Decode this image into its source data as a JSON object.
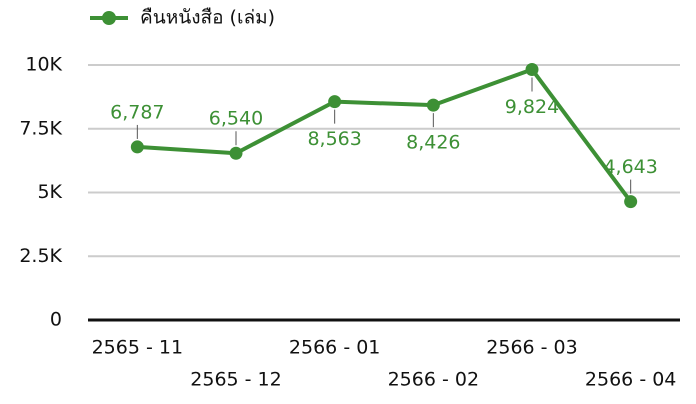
{
  "chart_data": {
    "type": "line",
    "series": [
      {
        "name": "คืนหนังสือ (เล่ม)",
        "color": "#3d9035",
        "values": [
          6787,
          6540,
          8563,
          8426,
          9824,
          4643
        ],
        "value_labels": [
          "6,787",
          "6,540",
          "8,563",
          "8,426",
          "9,824",
          "4,643"
        ]
      }
    ],
    "categories": [
      "2565 - 11",
      "2565 - 12",
      "2566 - 01",
      "2566 - 02",
      "2566 - 03",
      "2566 - 04"
    ],
    "ylim": [
      0,
      10000
    ],
    "yticks": [
      0,
      {
        "value": 2500,
        "label": "2.5K"
      },
      {
        "value": 5000,
        "label": "5K"
      },
      {
        "value": 7500,
        "label": "7.5K"
      },
      {
        "value": 10000,
        "label": "10K"
      }
    ],
    "grid": true,
    "legend": "top-left"
  }
}
